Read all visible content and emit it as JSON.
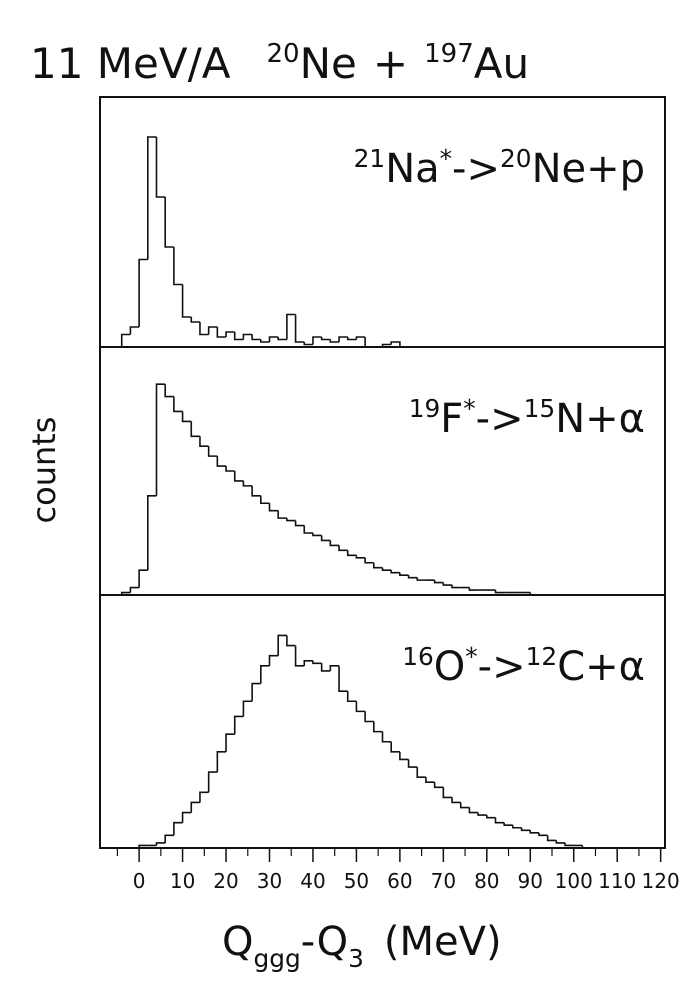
{
  "chart_data": {
    "type": "histogram",
    "title": [
      {
        "text": "11 MeV/A"
      },
      {
        "sup": "20"
      },
      {
        "text": "Ne"
      },
      {
        "text": "+"
      },
      {
        "sup": "197"
      },
      {
        "text": "Au"
      }
    ],
    "ylabel": "counts",
    "xlabel": [
      {
        "text": "Q"
      },
      {
        "sub": "ggg"
      },
      {
        "text": "-Q"
      },
      {
        "sub": "3"
      },
      {
        "text": "(MeV)"
      }
    ],
    "color": "#111111",
    "xlim": [
      -9,
      121
    ],
    "xticks": [
      0,
      10,
      20,
      30,
      40,
      50,
      60,
      70,
      80,
      90,
      100,
      110,
      120
    ],
    "xminorticks": [
      -5,
      5,
      15,
      25,
      35,
      45,
      55,
      65,
      75,
      85,
      95,
      105,
      115
    ],
    "panels": [
      {
        "label": [
          {
            "sup": "21"
          },
          {
            "text": "Na"
          },
          {
            "sup": "*"
          },
          {
            "text": "->"
          },
          {
            "sup": "20"
          },
          {
            "text": "Ne+p"
          }
        ],
        "ylim": [
          0,
          100
        ],
        "bins": [
          -6,
          -4,
          -2,
          0,
          2,
          4,
          6,
          8,
          10,
          12,
          14,
          16,
          18,
          20,
          22,
          24,
          26,
          28,
          30,
          32,
          34,
          36,
          38,
          40,
          42,
          44,
          46,
          48,
          50,
          52,
          54,
          56,
          58,
          60
        ],
        "values": [
          0,
          5,
          8,
          35,
          84,
          60,
          40,
          25,
          12,
          10,
          5,
          8,
          4,
          6,
          3,
          5,
          3,
          2,
          4,
          3,
          13,
          2,
          1,
          4,
          3,
          2,
          4,
          3,
          4,
          0,
          0,
          1,
          2
        ]
      },
      {
        "label": [
          {
            "sup": "19"
          },
          {
            "text": "F"
          },
          {
            "sup": "*"
          },
          {
            "text": "->"
          },
          {
            "sup": "15"
          },
          {
            "text": "N+α"
          }
        ],
        "ylim": [
          0,
          100
        ],
        "bins": [
          -6,
          -4,
          -2,
          0,
          2,
          4,
          6,
          8,
          10,
          12,
          14,
          16,
          18,
          20,
          22,
          24,
          26,
          28,
          30,
          32,
          34,
          36,
          38,
          40,
          42,
          44,
          46,
          48,
          50,
          52,
          54,
          56,
          58,
          60,
          62,
          64,
          66,
          68,
          70,
          72,
          74,
          76,
          78,
          80,
          82,
          84,
          86,
          88,
          90,
          92,
          94,
          96,
          98,
          100
        ],
        "values": [
          0,
          1,
          3,
          10,
          40,
          85,
          80,
          74,
          70,
          64,
          60,
          56,
          52,
          50,
          46,
          44,
          40,
          37,
          34,
          31,
          30,
          28,
          25,
          24,
          22,
          20,
          18,
          16,
          15,
          13,
          11,
          10,
          9,
          8,
          7,
          6,
          6,
          5,
          4,
          3,
          3,
          2,
          2,
          2,
          1,
          1,
          1,
          1,
          0,
          0,
          0,
          0,
          0
        ]
      },
      {
        "label": [
          {
            "sup": "16"
          },
          {
            "text": "O"
          },
          {
            "sup": "*"
          },
          {
            "text": "->"
          },
          {
            "sup": "12"
          },
          {
            "text": "C+α"
          }
        ],
        "ylim": [
          0,
          100
        ],
        "bins": [
          -6,
          -4,
          -2,
          0,
          2,
          4,
          6,
          8,
          10,
          12,
          14,
          16,
          18,
          20,
          22,
          24,
          26,
          28,
          30,
          32,
          34,
          36,
          38,
          40,
          42,
          44,
          46,
          48,
          50,
          52,
          54,
          56,
          58,
          60,
          62,
          64,
          66,
          68,
          70,
          72,
          74,
          76,
          78,
          80,
          82,
          84,
          86,
          88,
          90,
          92,
          94,
          96,
          98,
          100,
          102,
          104
        ],
        "values": [
          0,
          0,
          0,
          1,
          1,
          2,
          5,
          10,
          14,
          18,
          22,
          30,
          38,
          45,
          52,
          58,
          65,
          72,
          76,
          84,
          80,
          72,
          74,
          73,
          70,
          72,
          62,
          58,
          54,
          50,
          46,
          42,
          38,
          35,
          32,
          28,
          26,
          24,
          20,
          18,
          16,
          14,
          13,
          12,
          10,
          9,
          8,
          7,
          6,
          5,
          3,
          2,
          1,
          1,
          0
        ]
      }
    ]
  }
}
